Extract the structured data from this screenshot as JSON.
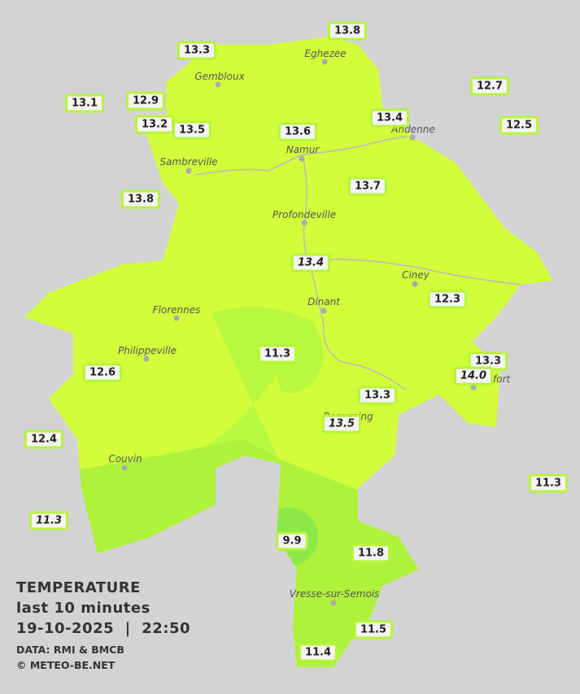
{
  "legend": {
    "title": "TEMPERATURE",
    "subtitle": "last 10 minutes",
    "datetime": "19-10-2025  |  22:50",
    "source": "DATA: RMI & BMCB",
    "copyright": "© METEO-BE.NET"
  },
  "cities": [
    "Eghezee",
    "Gembloux",
    "Andenne",
    "Namur",
    "Sambreville",
    "Profondeville",
    "Ciney",
    "Dinant",
    "Florennes",
    "Philippeville",
    "Rochefort",
    "Beauraing",
    "Couvin",
    "Vresse-sur-Semois"
  ],
  "stations": [
    "13.8",
    "13.3",
    "13.1",
    "12.9",
    "12.7",
    "13.2",
    "13.5",
    "13.6",
    "13.4",
    "12.5",
    "13.8",
    "13.7",
    "13.4",
    "12.3",
    "11.3",
    "12.6",
    "13.3",
    "14.0",
    "13.3",
    "13.5",
    "12.4",
    "11.3",
    "11.3",
    "9.9",
    "11.8",
    "11.5",
    "11.4"
  ]
}
